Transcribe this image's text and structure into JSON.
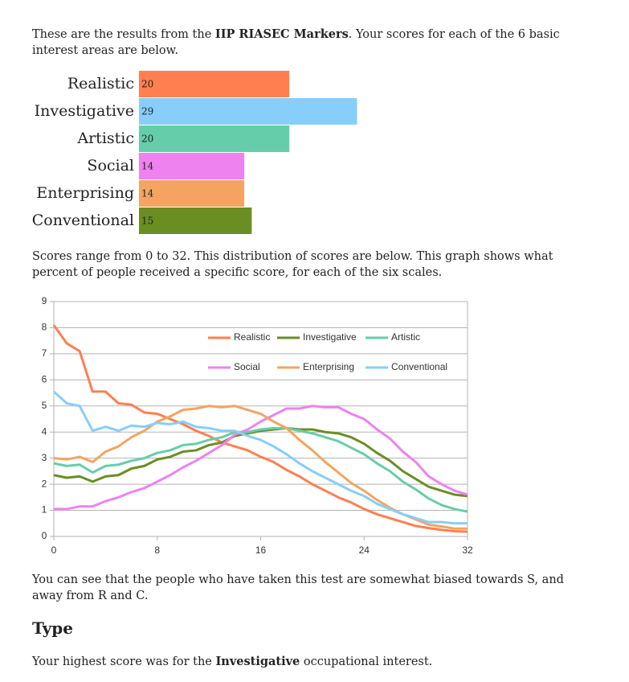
{
  "intro": {
    "before": "These are the results from the ",
    "bold": "IIP RIASEC Markers",
    "after": ". Your scores for each of the 6 basic interest areas are below."
  },
  "chart_data": [
    {
      "type": "hbar",
      "categories": [
        "Realistic",
        "Investigative",
        "Artistic",
        "Social",
        "Enterprising",
        "Conventional"
      ],
      "values": [
        20,
        29,
        20,
        14,
        14,
        15
      ],
      "colors": [
        "#ff7f50",
        "#87cefa",
        "#66cdaa",
        "#ee82ee",
        "#f4a460",
        "#6b8e23"
      ]
    },
    {
      "type": "line",
      "x": [
        0,
        1,
        2,
        3,
        4,
        5,
        6,
        7,
        8,
        9,
        10,
        11,
        12,
        13,
        14,
        15,
        16,
        17,
        18,
        19,
        20,
        21,
        22,
        23,
        24,
        25,
        26,
        27,
        28,
        29,
        30,
        31,
        32
      ],
      "xlim": [
        0,
        32
      ],
      "xticks": [
        0,
        8,
        16,
        24,
        32
      ],
      "ylim": [
        0,
        9
      ],
      "yticks": [
        0,
        1,
        2,
        3,
        4,
        5,
        6,
        7,
        8,
        9
      ],
      "grid": true,
      "series": [
        {
          "name": "Realistic",
          "color": "#ff7f50",
          "values": [
            8.1,
            7.4,
            7.1,
            5.55,
            5.55,
            5.1,
            5.05,
            4.75,
            4.7,
            4.5,
            4.3,
            4.05,
            3.85,
            3.6,
            3.45,
            3.3,
            3.05,
            2.85,
            2.55,
            2.3,
            2.0,
            1.75,
            1.5,
            1.3,
            1.05,
            0.85,
            0.7,
            0.55,
            0.4,
            0.32,
            0.25,
            0.2,
            0.18
          ]
        },
        {
          "name": "Investigative",
          "color": "#6b8e23",
          "values": [
            2.35,
            2.25,
            2.3,
            2.1,
            2.3,
            2.35,
            2.6,
            2.7,
            2.95,
            3.05,
            3.25,
            3.3,
            3.5,
            3.6,
            3.85,
            3.95,
            4.05,
            4.1,
            4.15,
            4.1,
            4.1,
            4.0,
            3.95,
            3.8,
            3.55,
            3.2,
            2.9,
            2.5,
            2.2,
            1.9,
            1.75,
            1.6,
            1.55
          ]
        },
        {
          "name": "Artistic",
          "color": "#66cdaa",
          "values": [
            2.8,
            2.7,
            2.75,
            2.45,
            2.7,
            2.75,
            2.9,
            3.0,
            3.2,
            3.3,
            3.5,
            3.55,
            3.7,
            3.8,
            4.0,
            4.0,
            4.1,
            4.15,
            4.15,
            4.05,
            3.95,
            3.8,
            3.65,
            3.4,
            3.15,
            2.8,
            2.5,
            2.1,
            1.8,
            1.45,
            1.2,
            1.05,
            0.95
          ]
        },
        {
          "name": "Social",
          "color": "#ee82ee",
          "values": [
            1.05,
            1.05,
            1.15,
            1.15,
            1.35,
            1.5,
            1.7,
            1.85,
            2.1,
            2.35,
            2.65,
            2.9,
            3.2,
            3.5,
            3.9,
            4.1,
            4.4,
            4.65,
            4.9,
            4.9,
            5.0,
            4.95,
            4.95,
            4.7,
            4.5,
            4.1,
            3.75,
            3.25,
            2.85,
            2.3,
            2.0,
            1.75,
            1.6
          ]
        },
        {
          "name": "Enterprising",
          "color": "#f4a460",
          "values": [
            3.0,
            2.95,
            3.05,
            2.85,
            3.25,
            3.45,
            3.8,
            4.05,
            4.4,
            4.6,
            4.85,
            4.9,
            5.0,
            4.95,
            5.0,
            4.85,
            4.7,
            4.4,
            4.15,
            3.7,
            3.3,
            2.85,
            2.45,
            2.05,
            1.75,
            1.4,
            1.1,
            0.85,
            0.65,
            0.45,
            0.38,
            0.3,
            0.3
          ]
        },
        {
          "name": "Conventional",
          "color": "#87cefa",
          "values": [
            5.55,
            5.1,
            5.0,
            4.05,
            4.2,
            4.05,
            4.25,
            4.2,
            4.35,
            4.3,
            4.4,
            4.2,
            4.15,
            4.05,
            4.05,
            3.85,
            3.7,
            3.45,
            3.15,
            2.8,
            2.5,
            2.25,
            2.0,
            1.75,
            1.55,
            1.25,
            1.05,
            0.85,
            0.7,
            0.55,
            0.55,
            0.5,
            0.5
          ]
        }
      ]
    }
  ],
  "range_text": "Scores range from 0 to 32. This distribution of scores are below. This graph shows what percent of people received a specific score, for each of the six scales.",
  "bias_text": "You can see that the people who have taken this test are somewhat biased towards S, and away from R and C.",
  "type_heading": "Type",
  "highest": {
    "before": "Your highest score was for the ",
    "bold": "Investigative",
    "after": " occupational interest."
  }
}
